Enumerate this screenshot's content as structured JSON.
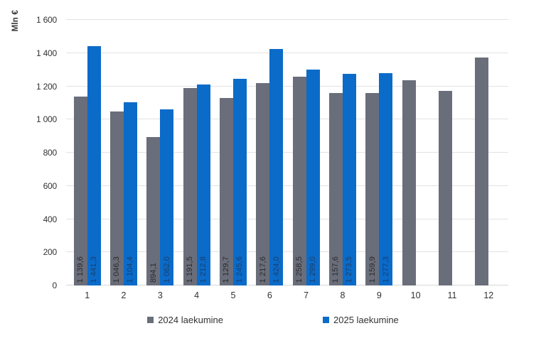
{
  "chart_data": {
    "type": "bar",
    "title": "",
    "ylabel": "Mln €",
    "xlabel": "",
    "ylim": [
      0,
      1600
    ],
    "ytick_labels": [
      "0",
      "200",
      "400",
      "600",
      "800",
      "1 000",
      "1 200",
      "1 400",
      "1 600"
    ],
    "categories": [
      "1",
      "2",
      "3",
      "4",
      "5",
      "6",
      "7",
      "8",
      "9",
      "10",
      "11",
      "12"
    ],
    "grid": true,
    "legend_position": "bottom",
    "colors": {
      "gridline": "#e2e2e2",
      "axis_text": "#333333"
    },
    "series": [
      {
        "name": "2024 laekumine",
        "color": "#6a6e7a",
        "label_color": "#2b2b2b",
        "values": [
          1139.6,
          1046.3,
          894.1,
          1191.5,
          1129.7,
          1217.6,
          1258.5,
          1157.6,
          1159.9,
          1237,
          1171,
          1374
        ],
        "labels": [
          "1 139,6",
          "1 046,3",
          "894,1",
          "1 191,5",
          "1 129,7",
          "1 217,6",
          "1 258,5",
          "1 157,6",
          "1 159,9",
          "",
          "",
          ""
        ]
      },
      {
        "name": "2025 laekumine",
        "color": "#0b6bc9",
        "label_color": "#173f6e",
        "values": [
          1441.3,
          1104.4,
          1062.0,
          1212.8,
          1245.6,
          1424.0,
          1299.0,
          1273.5,
          1277.3,
          null,
          null,
          null
        ],
        "labels": [
          "1 441,3",
          "1 104,4",
          "1 062,0",
          "1 212,8",
          "1 245,6",
          "1 424,0",
          "1 299,0",
          "1 273,5",
          "1 277,3",
          "",
          "",
          ""
        ]
      }
    ]
  }
}
